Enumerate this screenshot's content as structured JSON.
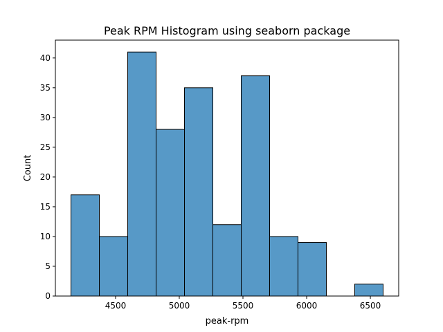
{
  "chart_data": {
    "type": "bar",
    "title": "Peak RPM Histogram using seaborn package",
    "xlabel": "peak-rpm",
    "ylabel": "Count",
    "bin_edges": [
      4150,
      4372.73,
      4595.45,
      4818.18,
      5040.91,
      5263.64,
      5486.36,
      5709.09,
      5931.82,
      6154.55,
      6377.27,
      6600
    ],
    "values": [
      17,
      10,
      41,
      28,
      35,
      12,
      37,
      10,
      9,
      0,
      2
    ],
    "xlim": [
      4027.5,
      6722.5
    ],
    "ylim": [
      0,
      43
    ],
    "xticks": [
      4500,
      5000,
      5500,
      6000,
      6500
    ],
    "yticks": [
      0,
      5,
      10,
      15,
      20,
      25,
      30,
      35,
      40
    ],
    "bar_color": "#5799c7",
    "edge_color": "#000000",
    "grid": false
  }
}
